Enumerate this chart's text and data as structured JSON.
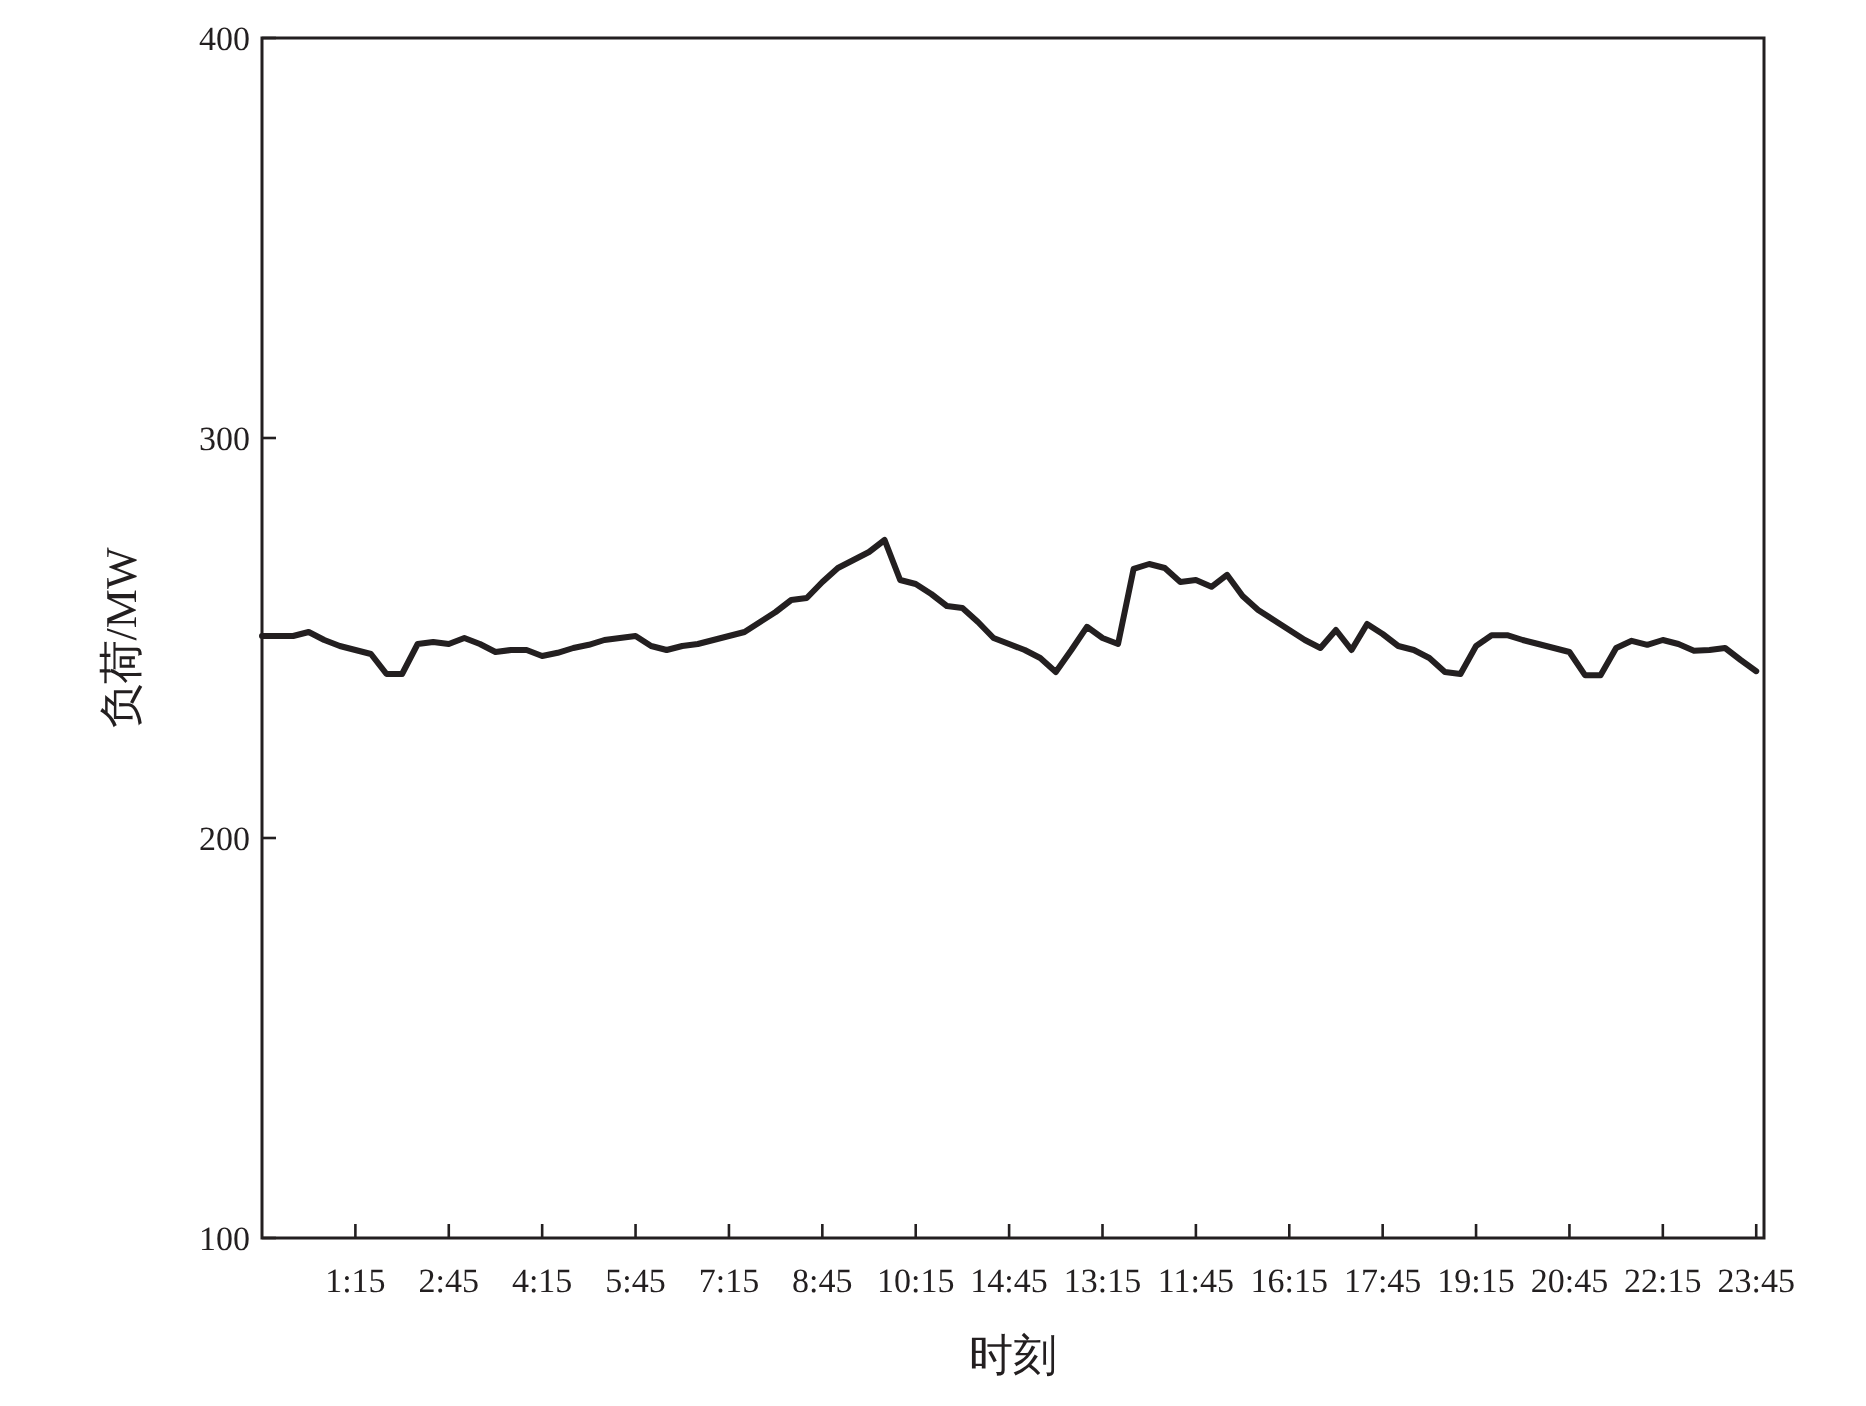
{
  "chart_data": {
    "type": "line",
    "xlabel": "时刻",
    "ylabel": "负荷/MW",
    "ylim": [
      100,
      400
    ],
    "yticks": [
      100,
      200,
      300,
      400
    ],
    "categories": [
      null,
      null,
      null,
      null,
      null,
      null,
      "1:15",
      null,
      null,
      null,
      null,
      null,
      "2:45",
      null,
      null,
      null,
      null,
      null,
      "4:15",
      null,
      null,
      null,
      null,
      null,
      "5:45",
      null,
      null,
      null,
      null,
      null,
      "7:15",
      null,
      null,
      null,
      null,
      null,
      "8:45",
      null,
      null,
      null,
      null,
      null,
      "10:15",
      null,
      null,
      null,
      null,
      null,
      "14:45",
      null,
      null,
      null,
      null,
      null,
      "13:15",
      null,
      null,
      null,
      null,
      null,
      "11:45",
      null,
      null,
      null,
      null,
      null,
      "16:15",
      null,
      null,
      null,
      null,
      null,
      "17:45",
      null,
      null,
      null,
      null,
      null,
      "19:15",
      null,
      null,
      null,
      null,
      null,
      "20:45",
      null,
      null,
      null,
      null,
      null,
      "22:15",
      null,
      null,
      null,
      null,
      null,
      "23:45"
    ],
    "grid": false,
    "marker": "none",
    "line_style": "solid",
    "series": [
      {
        "color": "#231f20",
        "values": [
          250.5,
          250.5,
          250.5,
          251.5,
          249.5,
          248,
          247,
          246,
          241,
          241,
          248.5,
          249,
          248.5,
          250,
          248.5,
          246.5,
          247,
          247,
          245.5,
          246.3,
          247.5,
          248.3,
          249.5,
          250,
          250.5,
          248,
          247,
          248,
          248.5,
          249.5,
          250.5,
          251.5,
          254,
          256.5,
          259.5,
          260,
          264,
          267.5,
          269.5,
          271.5,
          274.5,
          264.5,
          263.5,
          261,
          258,
          257.5,
          254,
          250,
          248.5,
          247,
          245,
          241.5,
          247,
          252.8,
          250,
          248.5,
          267.3,
          268.5,
          267.5,
          264,
          264.5,
          262.8,
          265.8,
          260.5,
          257,
          254.5,
          252,
          249.5,
          247.5,
          252,
          247,
          253.5,
          251,
          248,
          247,
          245,
          241.5,
          241,
          248,
          250.7,
          250.7,
          249.5,
          248.5,
          247.5,
          246.5,
          240.7,
          240.7,
          247.5,
          249.3,
          248.3,
          249.5,
          248.5,
          246.8,
          247,
          247.5,
          244.5,
          241.7
        ]
      }
    ]
  }
}
